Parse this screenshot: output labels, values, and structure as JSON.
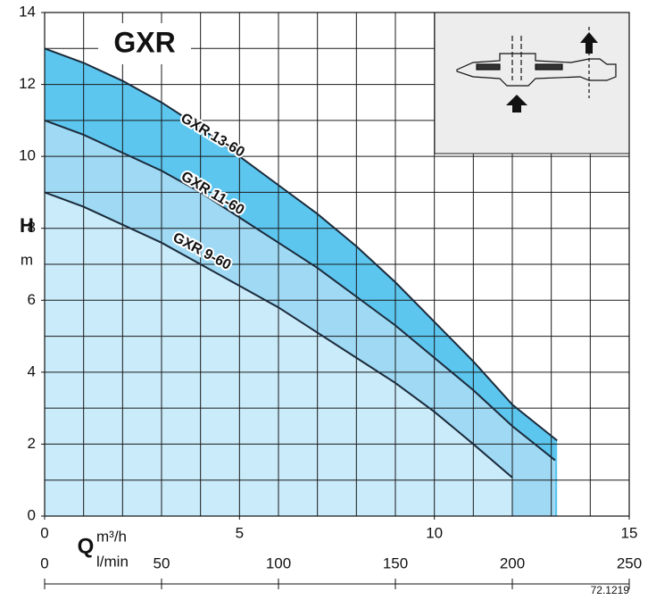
{
  "chart_data": {
    "type": "area",
    "title": "GXR",
    "y_label": "H",
    "y_unit": "m",
    "x_label": "Q",
    "x_unit": "m³/h",
    "x2_unit": "l/min",
    "code": "72.1219",
    "xlim": [
      0,
      15
    ],
    "xticks": [
      0,
      5,
      10,
      15
    ],
    "x2lim": [
      0,
      250
    ],
    "x2ticks": [
      0,
      50,
      100,
      150,
      200,
      250
    ],
    "ylim": [
      0,
      14
    ],
    "yticks": [
      0,
      2,
      4,
      6,
      8,
      10,
      12,
      14
    ],
    "grid": true,
    "series": [
      {
        "name": "GXR 13-60",
        "color": "#5cc6ef",
        "x": [
          0,
          1,
          2,
          3,
          4,
          5,
          6,
          7,
          8,
          9,
          10,
          11,
          12,
          13.15
        ],
        "values": [
          13,
          12.6,
          12.1,
          11.5,
          10.8,
          10.0,
          9.2,
          8.4,
          7.5,
          6.5,
          5.4,
          4.3,
          3.1,
          2.1
        ]
      },
      {
        "name": "GXR 11-60",
        "color": "#9fd9f4",
        "x": [
          0,
          1,
          2,
          3,
          4,
          5,
          6,
          7,
          8,
          9,
          10,
          11,
          12,
          13.1
        ],
        "values": [
          11,
          10.6,
          10.1,
          9.6,
          9.0,
          8.3,
          7.6,
          6.9,
          6.1,
          5.3,
          4.4,
          3.5,
          2.5,
          1.55
        ]
      },
      {
        "name": "GXR 9-60",
        "color": "#c9ebfa",
        "x": [
          0,
          1,
          2,
          3,
          4,
          5,
          6,
          7,
          8,
          9,
          10,
          11,
          12
        ],
        "values": [
          9,
          8.6,
          8.1,
          7.6,
          7.0,
          6.4,
          5.8,
          5.1,
          4.4,
          3.7,
          2.9,
          2.0,
          1.07
        ]
      }
    ]
  }
}
